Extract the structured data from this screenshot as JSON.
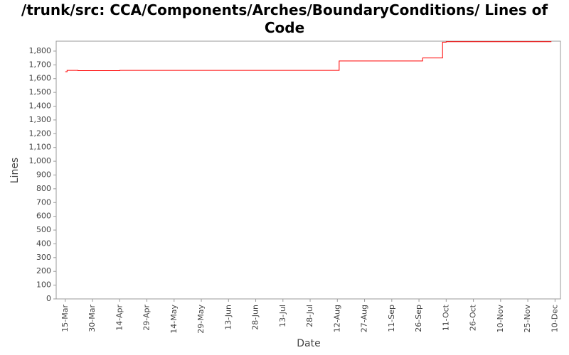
{
  "chart_data": {
    "type": "line",
    "title": "/trunk/src: CCA/Components/Arches/BoundaryConditions/ Lines of Code",
    "x_label": "Date",
    "y_label": "Lines",
    "step": true,
    "x": [
      "15-Mar",
      "16-Mar",
      "22-Mar",
      "14-Apr",
      "13-Aug",
      "28-Sep",
      "9-Oct",
      "11-Oct",
      "8-Dec"
    ],
    "series": [
      {
        "name": "Lines",
        "color": "#ff0000",
        "values": [
          1650,
          1660,
          1658,
          1660,
          1728,
          1750,
          1865,
          1868,
          1868
        ]
      }
    ],
    "xlim": [
      "10-Mar",
      "13-Dec"
    ],
    "xticks": [
      "15-Mar",
      "30-Mar",
      "14-Apr",
      "29-Apr",
      "14-May",
      "29-May",
      "13-Jun",
      "28-Jun",
      "13-Jul",
      "28-Jul",
      "12-Aug",
      "27-Aug",
      "11-Sep",
      "26-Sep",
      "11-Oct",
      "26-Oct",
      "10-Nov",
      "25-Nov",
      "10-Dec"
    ],
    "ylim": [
      0,
      1872
    ],
    "yticks": [
      0,
      100,
      200,
      300,
      400,
      500,
      600,
      700,
      800,
      900,
      {
        "value": 1000,
        "label": "1,000"
      },
      {
        "value": 1100,
        "label": "1,100"
      },
      {
        "value": 1200,
        "label": "1,200"
      },
      {
        "value": 1300,
        "label": "1,300"
      },
      {
        "value": 1400,
        "label": "1,400"
      },
      {
        "value": 1500,
        "label": "1,500"
      },
      {
        "value": 1600,
        "label": "1,600"
      },
      {
        "value": 1700,
        "label": "1,700"
      },
      {
        "value": 1800,
        "label": "1,800"
      }
    ]
  }
}
